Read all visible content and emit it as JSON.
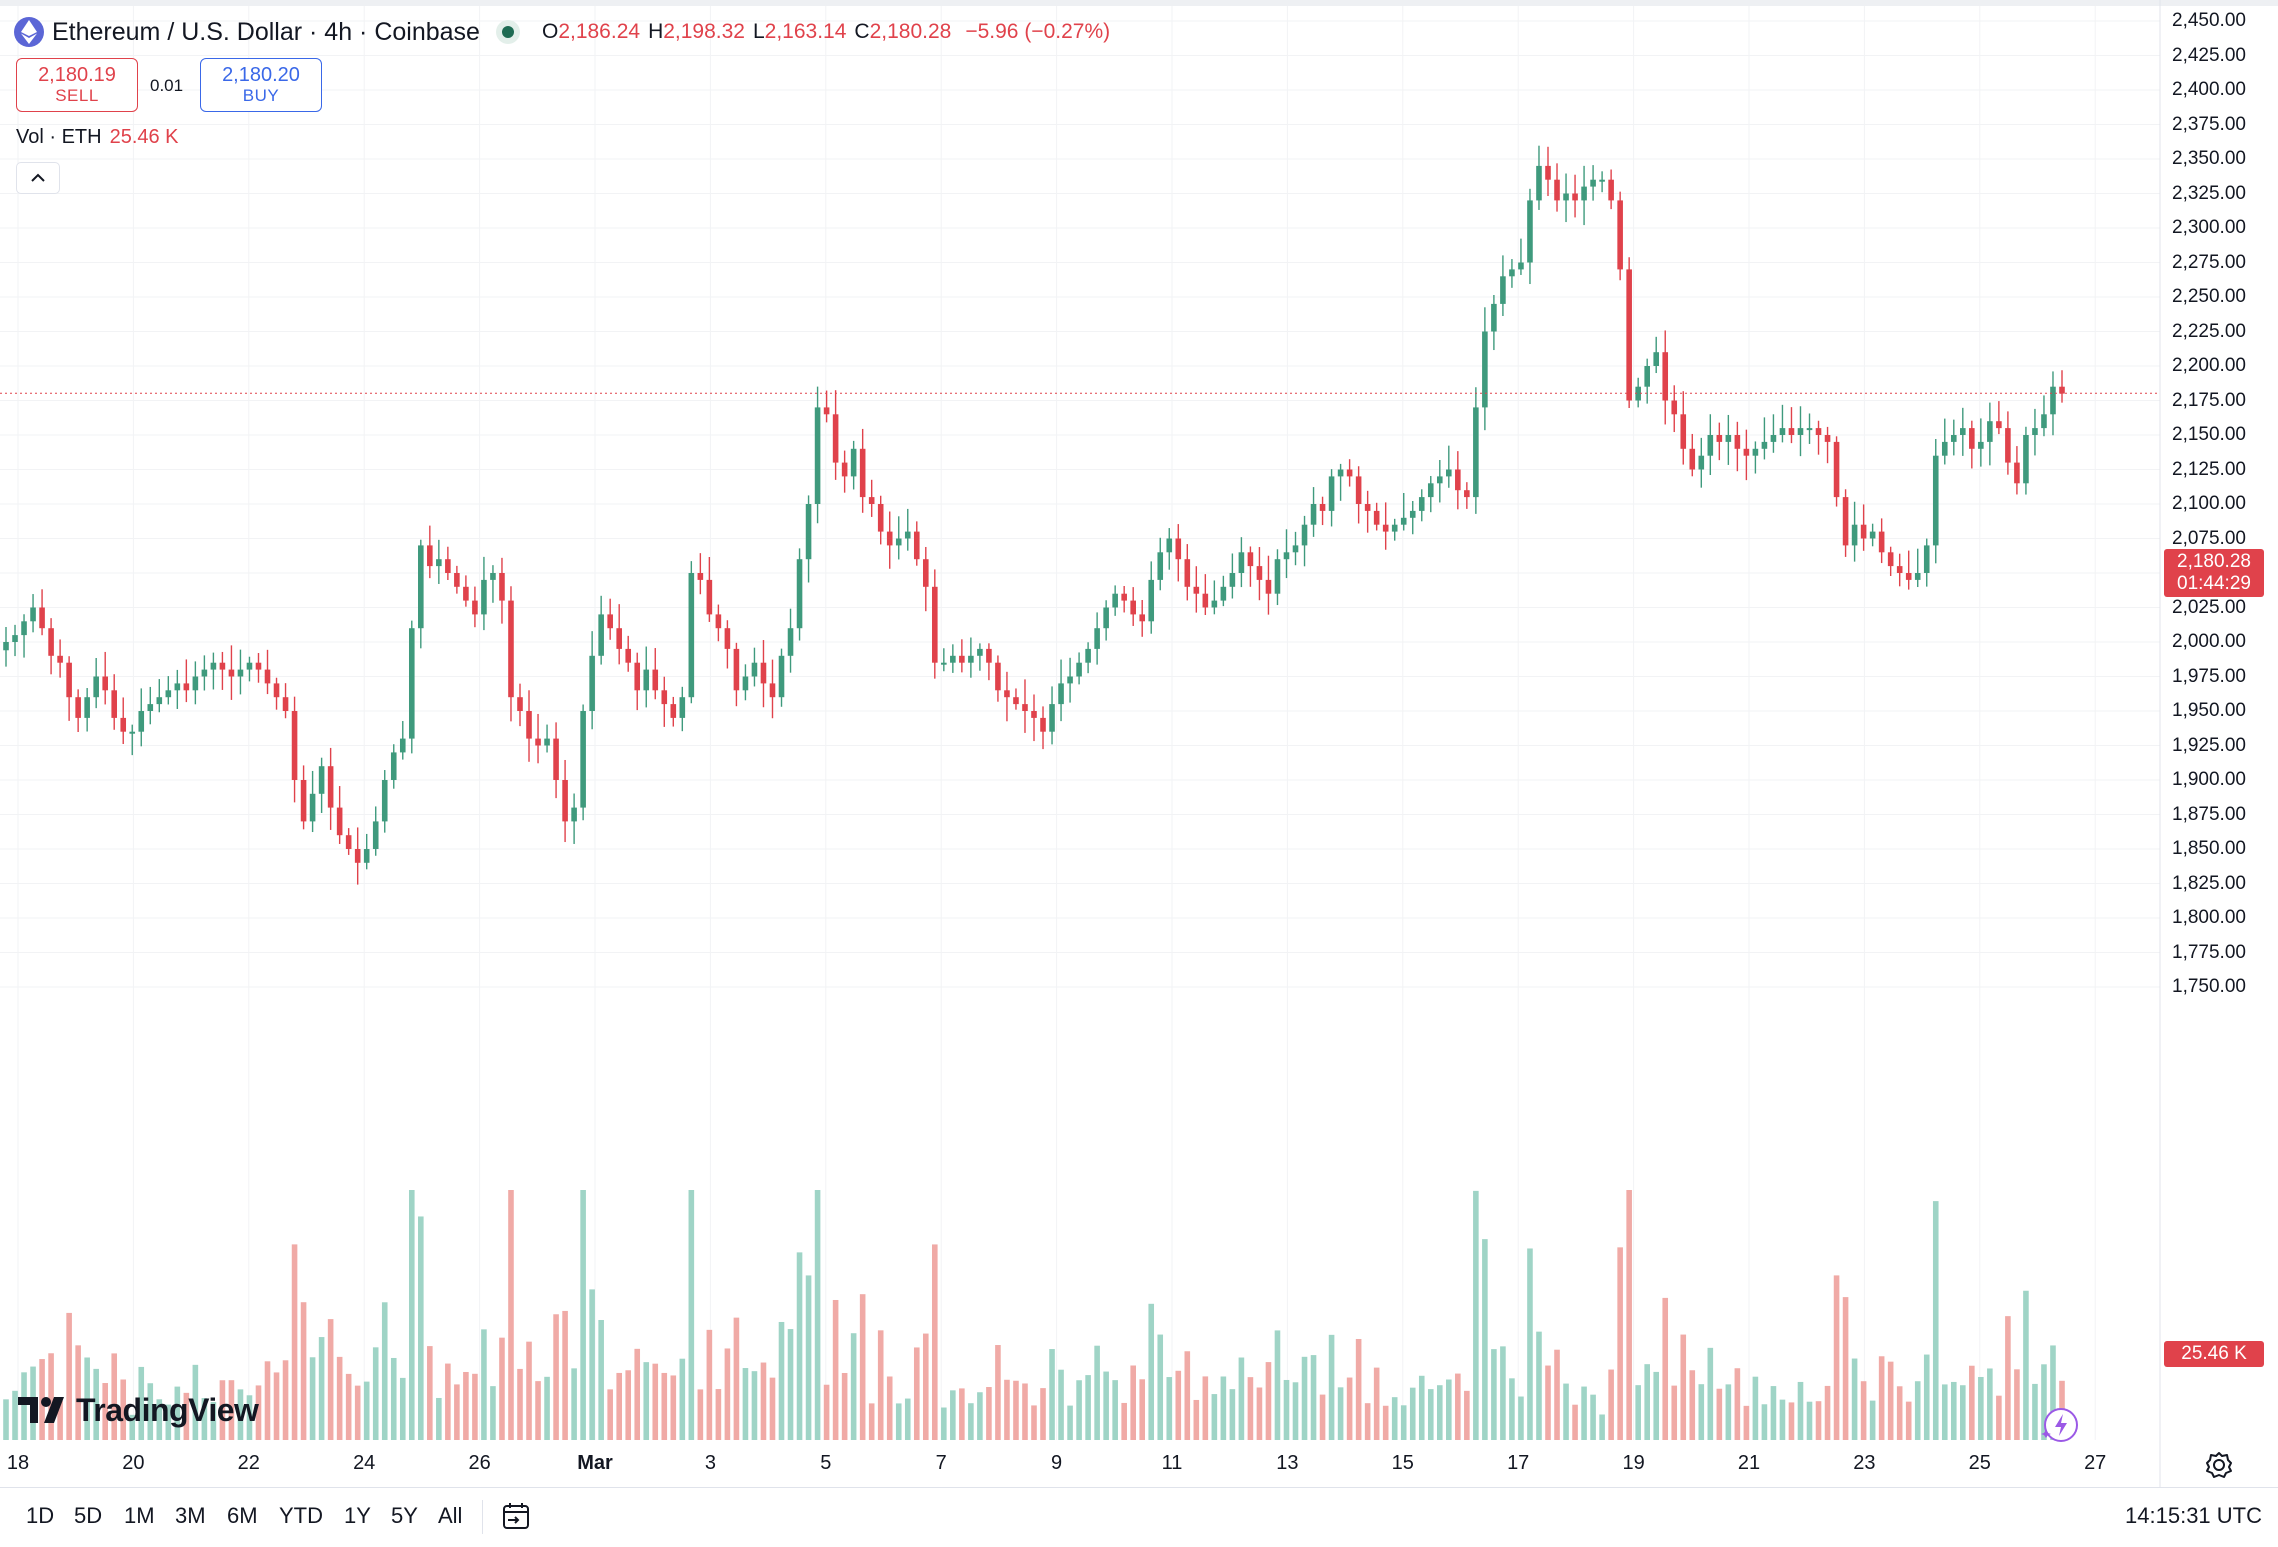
{
  "header": {
    "symbol": "Ethereum / U.S. Dollar · 4h · Coinbase",
    "o_label": "O",
    "o_value": "2,186.24",
    "h_label": "H",
    "h_value": "2,198.32",
    "l_label": "L",
    "l_value": "2,163.14",
    "c_label": "C",
    "c_value": "2,180.28",
    "change": "−5.96 (−0.27%)"
  },
  "trade": {
    "sell_price": "2,180.19",
    "sell_label": "SELL",
    "spread": "0.01",
    "buy_price": "2,180.20",
    "buy_label": "BUY"
  },
  "volume_legend": {
    "label": "Vol · ETH",
    "value": "25.46 K"
  },
  "logo_text": "TradingView",
  "price_tag": {
    "price": "2,180.28",
    "countdown": "01:44:29"
  },
  "volume_tag": "25.46 K",
  "price_axis": [
    "2,450.00",
    "2,425.00",
    "2,400.00",
    "2,375.00",
    "2,350.00",
    "2,325.00",
    "2,300.00",
    "2,275.00",
    "2,250.00",
    "2,225.00",
    "2,200.00",
    "2,175.00",
    "2,150.00",
    "2,125.00",
    "2,100.00",
    "2,075.00",
    "2,050.00",
    "2,025.00",
    "2,000.00",
    "1,975.00",
    "1,950.00",
    "1,925.00",
    "1,900.00",
    "1,875.00",
    "1,850.00",
    "1,825.00",
    "1,800.00",
    "1,775.00",
    "1,750.00"
  ],
  "date_axis": [
    "18",
    "20",
    "22",
    "24",
    "26",
    "Mar",
    "3",
    "5",
    "7",
    "9",
    "11",
    "13",
    "15",
    "17",
    "19",
    "21",
    "23",
    "25",
    "27"
  ],
  "ranges": [
    "1D",
    "5D",
    "1M",
    "3M",
    "6M",
    "YTD",
    "1Y",
    "5Y",
    "All"
  ],
  "clock": "14:15:31 UTC",
  "colors": {
    "up": "#3f9a7d",
    "down": "#e0424b",
    "up_vol": "#9fd4c6",
    "down_vol": "#f0aaa6",
    "buy": "#3a68e8"
  },
  "icons": [
    "ethereum-icon",
    "live-dot-icon",
    "chevron-up-icon",
    "tradingview-logo-icon",
    "calendar-goto-icon",
    "settings-gear-icon",
    "lightning-icon"
  ],
  "chart_data": {
    "type": "candlestick",
    "title": "Ethereum / U.S. Dollar · 4h · Coinbase",
    "interval": "4h",
    "ylim": [
      1740,
      2455
    ],
    "last_price": 2180.28,
    "x_ticks": [
      "18",
      "20",
      "22",
      "24",
      "26",
      "Mar",
      "3",
      "5",
      "7",
      "9",
      "11",
      "13",
      "15",
      "17",
      "19",
      "21",
      "23",
      "25",
      "27"
    ],
    "grid": true,
    "closes": [
      2000,
      2005,
      2015,
      2025,
      2010,
      1990,
      1985,
      1960,
      1945,
      1960,
      1975,
      1965,
      1945,
      1935,
      1935,
      1950,
      1955,
      1960,
      1965,
      1970,
      1965,
      1975,
      1980,
      1985,
      1980,
      1975,
      1980,
      1985,
      1980,
      1970,
      1960,
      1950,
      1900,
      1870,
      1890,
      1910,
      1880,
      1860,
      1850,
      1840,
      1850,
      1870,
      1900,
      1920,
      1930,
      2010,
      2070,
      2055,
      2060,
      2050,
      2040,
      2030,
      2020,
      2045,
      2050,
      2030,
      1960,
      1950,
      1930,
      1925,
      1930,
      1900,
      1870,
      1880,
      1950,
      1990,
      2020,
      2010,
      1995,
      1985,
      1965,
      1980,
      1965,
      1955,
      1945,
      1960,
      2050,
      2045,
      2020,
      2010,
      1995,
      1965,
      1975,
      1985,
      1970,
      1960,
      1990,
      2010,
      2060,
      2100,
      2170,
      2165,
      2130,
      2120,
      2140,
      2105,
      2100,
      2080,
      2070,
      2075,
      2080,
      2060,
      2040,
      1985,
      1985,
      1990,
      1985,
      1990,
      1995,
      1985,
      1965,
      1960,
      1955,
      1950,
      1945,
      1935,
      1955,
      1970,
      1975,
      1985,
      1995,
      2010,
      2025,
      2035,
      2030,
      2020,
      2015,
      2045,
      2065,
      2075,
      2060,
      2040,
      2035,
      2025,
      2030,
      2040,
      2050,
      2065,
      2055,
      2045,
      2035,
      2060,
      2065,
      2070,
      2085,
      2100,
      2095,
      2120,
      2125,
      2120,
      2100,
      2095,
      2085,
      2080,
      2085,
      2090,
      2095,
      2105,
      2115,
      2120,
      2125,
      2110,
      2105,
      2170,
      2225,
      2245,
      2265,
      2270,
      2275,
      2320,
      2345,
      2335,
      2320,
      2325,
      2320,
      2330,
      2335,
      2335,
      2320,
      2270,
      2175,
      2185,
      2200,
      2210,
      2175,
      2165,
      2140,
      2125,
      2135,
      2150,
      2145,
      2150,
      2140,
      2135,
      2140,
      2145,
      2150,
      2155,
      2150,
      2155,
      2155,
      2150,
      2145,
      2105,
      2070,
      2085,
      2075,
      2080,
      2065,
      2055,
      2050,
      2045,
      2050,
      2070,
      2135,
      2145,
      2150,
      2155,
      2140,
      2145,
      2160,
      2155,
      2130,
      2115,
      2150,
      2155,
      2165,
      2185,
      2180
    ]
  }
}
